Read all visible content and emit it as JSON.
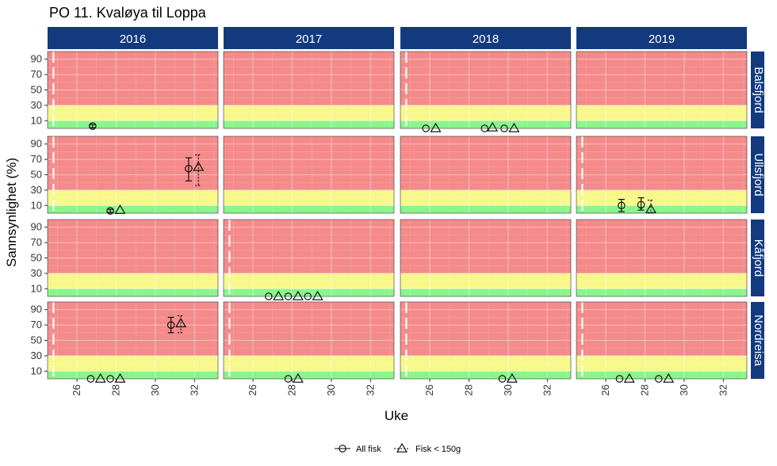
{
  "chart_data": {
    "type": "scatter",
    "title": "PO 11. Kvaløya til Loppa",
    "xlabel": "Uke",
    "ylabel": "Sannsynlighet (%)",
    "xlim": [
      24.5,
      33.2
    ],
    "ylim": [
      0,
      100
    ],
    "x_ticks": [
      26,
      28,
      30,
      32
    ],
    "y_ticks": [
      10,
      30,
      50,
      70,
      90
    ],
    "columns": [
      "2016",
      "2017",
      "2018",
      "2019"
    ],
    "rows": [
      "Balsfjord",
      "Ullsfjord",
      "Kåfjord",
      "Nordreisa"
    ],
    "zones": [
      {
        "name": "green",
        "from": 0,
        "to": 10,
        "color": "#8af58a"
      },
      {
        "name": "yellow",
        "from": 10,
        "to": 30,
        "color": "#f8f88a"
      },
      {
        "name": "red",
        "from": 30,
        "to": 100,
        "color": "#f58a8a"
      }
    ],
    "strip_color": "#133a7f",
    "legend": {
      "position": "bottom",
      "entries": [
        {
          "label": "All fisk",
          "marker": "circle",
          "line": "solid"
        },
        {
          "label": "Fisk < 150g",
          "marker": "triangle",
          "line": "dashed"
        }
      ]
    },
    "panels": [
      {
        "row": "Balsfjord",
        "col": "2016",
        "vline": 24.8,
        "points": [
          {
            "series": "All fisk",
            "x": 26.8,
            "y": 3,
            "lo": 1,
            "hi": 5
          }
        ]
      },
      {
        "row": "Balsfjord",
        "col": "2017",
        "points": []
      },
      {
        "row": "Balsfjord",
        "col": "2018",
        "vline": 24.8,
        "points": [
          {
            "series": "All fisk",
            "x": 25.8,
            "y": 0
          },
          {
            "series": "Fisk < 150g",
            "x": 26.3,
            "y": 0
          },
          {
            "series": "All fisk",
            "x": 28.8,
            "y": 0
          },
          {
            "series": "Fisk < 150g",
            "x": 29.2,
            "y": 1
          },
          {
            "series": "All fisk",
            "x": 29.8,
            "y": 0
          },
          {
            "series": "Fisk < 150g",
            "x": 30.3,
            "y": 0
          }
        ]
      },
      {
        "row": "Balsfjord",
        "col": "2019",
        "points": []
      },
      {
        "row": "Ullsfjord",
        "col": "2016",
        "vline": 24.8,
        "points": [
          {
            "series": "All fisk",
            "x": 27.7,
            "y": 3,
            "lo": 1,
            "hi": 5
          },
          {
            "series": "Fisk < 150g",
            "x": 28.2,
            "y": 4
          },
          {
            "series": "All fisk",
            "x": 31.7,
            "y": 58,
            "lo": 42,
            "hi": 72
          },
          {
            "series": "Fisk < 150g",
            "x": 32.2,
            "y": 60,
            "lo": 36,
            "hi": 76
          }
        ]
      },
      {
        "row": "Ullsfjord",
        "col": "2017",
        "points": []
      },
      {
        "row": "Ullsfjord",
        "col": "2018",
        "points": []
      },
      {
        "row": "Ullsfjord",
        "col": "2019",
        "vline": 24.8,
        "points": [
          {
            "series": "All fisk",
            "x": 26.8,
            "y": 10,
            "lo": 2,
            "hi": 18
          },
          {
            "series": "All fisk",
            "x": 27.8,
            "y": 11,
            "lo": 4,
            "hi": 20
          },
          {
            "series": "Fisk < 150g",
            "x": 28.3,
            "y": 5,
            "lo": 0,
            "hi": 17
          }
        ]
      },
      {
        "row": "Kåfjord",
        "col": "2016",
        "points": []
      },
      {
        "row": "Kåfjord",
        "col": "2017",
        "vline": 24.8,
        "points": [
          {
            "series": "All fisk",
            "x": 26.8,
            "y": 0
          },
          {
            "series": "Fisk < 150g",
            "x": 27.3,
            "y": 0
          },
          {
            "series": "All fisk",
            "x": 27.8,
            "y": 0
          },
          {
            "series": "Fisk < 150g",
            "x": 28.3,
            "y": 0
          },
          {
            "series": "All fisk",
            "x": 28.8,
            "y": 0
          },
          {
            "series": "Fisk < 150g",
            "x": 29.3,
            "y": 0
          }
        ]
      },
      {
        "row": "Kåfjord",
        "col": "2018",
        "points": []
      },
      {
        "row": "Kåfjord",
        "col": "2019",
        "points": []
      },
      {
        "row": "Nordreisa",
        "col": "2016",
        "vline": 24.8,
        "points": [
          {
            "series": "All fisk",
            "x": 26.7,
            "y": 0
          },
          {
            "series": "Fisk < 150g",
            "x": 27.2,
            "y": 0
          },
          {
            "series": "All fisk",
            "x": 27.7,
            "y": 0
          },
          {
            "series": "Fisk < 150g",
            "x": 28.2,
            "y": 0
          },
          {
            "series": "All fisk",
            "x": 30.8,
            "y": 70,
            "lo": 60,
            "hi": 80
          },
          {
            "series": "Fisk < 150g",
            "x": 31.3,
            "y": 72,
            "lo": 60,
            "hi": 82
          }
        ]
      },
      {
        "row": "Nordreisa",
        "col": "2017",
        "vline": 24.8,
        "points": [
          {
            "series": "All fisk",
            "x": 27.8,
            "y": 0
          },
          {
            "series": "Fisk < 150g",
            "x": 28.3,
            "y": 0
          }
        ]
      },
      {
        "row": "Nordreisa",
        "col": "2018",
        "vline": 24.8,
        "points": [
          {
            "series": "All fisk",
            "x": 29.7,
            "y": 0
          },
          {
            "series": "Fisk < 150g",
            "x": 30.2,
            "y": 0
          }
        ]
      },
      {
        "row": "Nordreisa",
        "col": "2019",
        "vline": 24.8,
        "points": [
          {
            "series": "All fisk",
            "x": 26.7,
            "y": 0
          },
          {
            "series": "Fisk < 150g",
            "x": 27.2,
            "y": 0
          },
          {
            "series": "All fisk",
            "x": 28.7,
            "y": 0
          },
          {
            "series": "Fisk < 150g",
            "x": 29.2,
            "y": 0
          }
        ]
      }
    ]
  }
}
